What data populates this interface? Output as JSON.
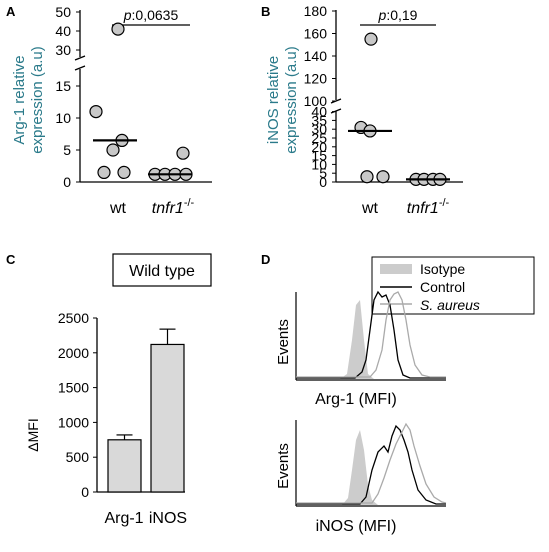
{
  "panels": {
    "A": "A",
    "B": "B",
    "C": "C",
    "D": "D"
  },
  "chart_data": [
    {
      "type": "scatter",
      "panel": "A",
      "ylabel_line1": "Arg-1 relative",
      "ylabel_line2": "expression (a.u)",
      "categories": [
        "wt",
        "tnfr1-/-"
      ],
      "category_labels": [
        {
          "main": "wt",
          "sup": ""
        },
        {
          "main": "tnfr1",
          "sup": "-/-"
        }
      ],
      "broken_axis": true,
      "lower_ticks": [
        "0",
        "5",
        "10",
        "15"
      ],
      "upper_ticks": [
        "30",
        "40",
        "50"
      ],
      "series": [
        {
          "category": "wt",
          "values": [
            41,
            11,
            6.5,
            5,
            1.5,
            1.5
          ],
          "median": 6.5
        },
        {
          "category": "tnfr1-/-",
          "values": [
            4.5,
            1.2,
            1.2,
            1.2,
            1.2
          ],
          "median": 1.2
        }
      ],
      "annotation": "p:0,0635"
    },
    {
      "type": "scatter",
      "panel": "B",
      "ylabel_line1": "iNOS relative",
      "ylabel_line2": "expression (a.u)",
      "categories": [
        "wt",
        "tnfr1-/-"
      ],
      "category_labels": [
        {
          "main": "wt",
          "sup": ""
        },
        {
          "main": "tnfr1",
          "sup": "-/-"
        }
      ],
      "broken_axis": true,
      "lower_ticks": [
        "0",
        "5",
        "10",
        "15",
        "20",
        "25",
        "30",
        "35",
        "40"
      ],
      "upper_ticks": [
        "100",
        "120",
        "140",
        "160",
        "180"
      ],
      "series": [
        {
          "category": "wt",
          "values": [
            155,
            31,
            29,
            3,
            3
          ],
          "median": 29
        },
        {
          "category": "tnfr1-/-",
          "values": [
            1.5,
            1.5,
            1.5,
            1.5
          ],
          "median": 1.5
        }
      ],
      "annotation": "p:0,19"
    },
    {
      "type": "bar",
      "panel": "C",
      "title": "Wild type",
      "ylabel": "ΔMFI",
      "categories": [
        "Arg-1",
        "iNOS"
      ],
      "values": [
        750,
        2120
      ],
      "errors": [
        70,
        220
      ],
      "ylim": [
        0,
        2500
      ],
      "yticks": [
        "0",
        "500",
        "1000",
        "1500",
        "2000",
        "2500"
      ],
      "bar_color": "#d9d9d9"
    },
    {
      "type": "line",
      "panel": "D",
      "legend": [
        "Isotype",
        "Control",
        "S. aureus"
      ],
      "legend_colors": [
        "#cccccc",
        "#000000",
        "#aaaaaa"
      ],
      "plots": [
        {
          "ylabel": "Events",
          "xlabel": "Arg-1 (MFI)"
        },
        {
          "ylabel": "Events",
          "xlabel": "iNOS (MFI)"
        }
      ]
    }
  ]
}
